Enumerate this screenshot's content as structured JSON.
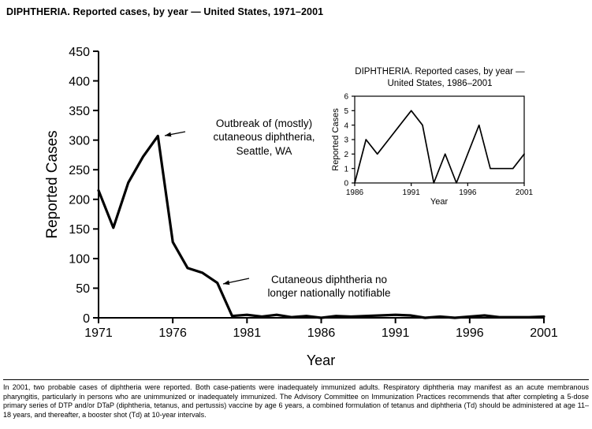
{
  "page_title": "DIPHTHERIA. Reported cases, by year — United States, 1971–2001",
  "colors": {
    "line": "#000000",
    "background": "#ffffff",
    "text": "#000000"
  },
  "chart_data": [
    {
      "type": "line",
      "id": "main",
      "title": "DIPHTHERIA. Reported cases, by year — United States, 1971–2001",
      "xlabel": "Year",
      "ylabel": "Reported Cases",
      "xlim": [
        1971,
        2001
      ],
      "ylim": [
        0,
        450
      ],
      "xticks": [
        1971,
        1976,
        1981,
        1986,
        1991,
        1996,
        2001
      ],
      "yticks": [
        0,
        50,
        100,
        150,
        200,
        250,
        300,
        350,
        400,
        450
      ],
      "grid": false,
      "legend": "none",
      "x": [
        1971,
        1972,
        1973,
        1974,
        1975,
        1976,
        1977,
        1978,
        1979,
        1980,
        1981,
        1982,
        1983,
        1984,
        1985,
        1986,
        1987,
        1988,
        1989,
        1990,
        1991,
        1992,
        1993,
        1994,
        1995,
        1996,
        1997,
        1998,
        1999,
        2000,
        2001
      ],
      "values": [
        215,
        152,
        228,
        272,
        307,
        128,
        84,
        76,
        59,
        3,
        5,
        2,
        5,
        1,
        3,
        0,
        3,
        2,
        3,
        4,
        5,
        4,
        0,
        2,
        0,
        2,
        4,
        1,
        1,
        1,
        2
      ],
      "annotations": [
        {
          "id": "outbreak",
          "text": "Outbreak of (mostly)\ncutaneous diphtheria,\nSeattle, WA"
        },
        {
          "id": "notifiable",
          "text": "Cutaneous diphtheria no\nlonger nationally notifiable"
        }
      ]
    },
    {
      "type": "line",
      "id": "inset",
      "title": "DIPHTHERIA. Reported cases, by year —\nUnited States, 1986–2001",
      "xlabel": "Year",
      "ylabel": "Reported Cases",
      "xlim": [
        1986,
        2001
      ],
      "ylim": [
        0,
        6
      ],
      "xticks": [
        1986,
        1991,
        1996,
        2001
      ],
      "yticks": [
        0,
        1,
        2,
        3,
        4,
        5,
        6
      ],
      "grid": false,
      "legend": "none",
      "x": [
        1986,
        1987,
        1988,
        1989,
        1990,
        1991,
        1992,
        1993,
        1994,
        1995,
        1996,
        1997,
        1998,
        1999,
        2000,
        2001
      ],
      "values": [
        0,
        3,
        2,
        3,
        4,
        5,
        4,
        0,
        2,
        0,
        2,
        4,
        1,
        1,
        1,
        2
      ]
    }
  ],
  "footnote": "In 2001, two probable cases of diphtheria were reported. Both case-patients were inadequately immunized adults. Respiratory diphtheria may manifest as an acute membranous pharyngitis, particularly in persons who are unimmunized or inadequately immunized. The Advisory Committee on Immunization Practices recommends that after completing a 5-dose primary series of DTP and/or DTaP (diphtheria, tetanus, and pertussis) vaccine by age 6 years, a combined formulation of tetanus and diphtheria (Td) should be administered at age 11–18 years, and thereafter, a booster shot (Td) at 10-year intervals."
}
